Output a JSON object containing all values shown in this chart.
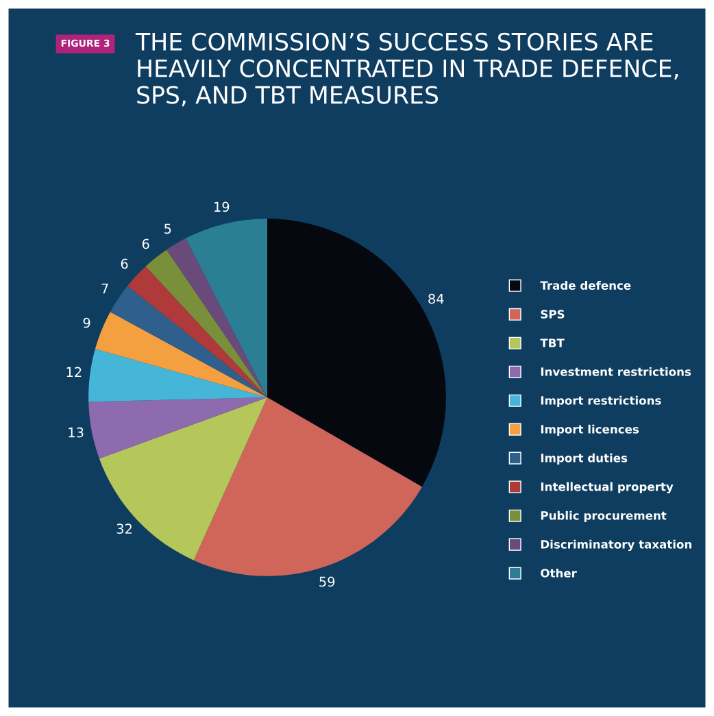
{
  "chart_data": {
    "type": "pie",
    "title": "THE COMMISSION’S SUCCESS STORIES ARE HEAVILY CONCENTRATED IN TRADE DEFENCE, SPS, AND TBT MEASURES",
    "annotations": [
      "FIGURE 3"
    ],
    "categories": [
      "Trade defence",
      "SPS",
      "TBT",
      "Investment restrictions",
      "Import restrictions",
      "Import licences",
      "Import duties",
      "Intellectual property",
      "Public procurement",
      "Discriminatory taxation",
      "Other"
    ],
    "values": [
      84,
      59,
      32,
      13,
      12,
      9,
      7,
      6,
      6,
      5,
      19
    ],
    "colors": [
      "#05090f",
      "#d0665a",
      "#b5c65a",
      "#8e6aae",
      "#45b5d8",
      "#f5a040",
      "#2f5f8c",
      "#b03a3a",
      "#7a8f3a",
      "#6a4a7a",
      "#2a7f95"
    ],
    "data_labels": true,
    "legend": "right"
  }
}
